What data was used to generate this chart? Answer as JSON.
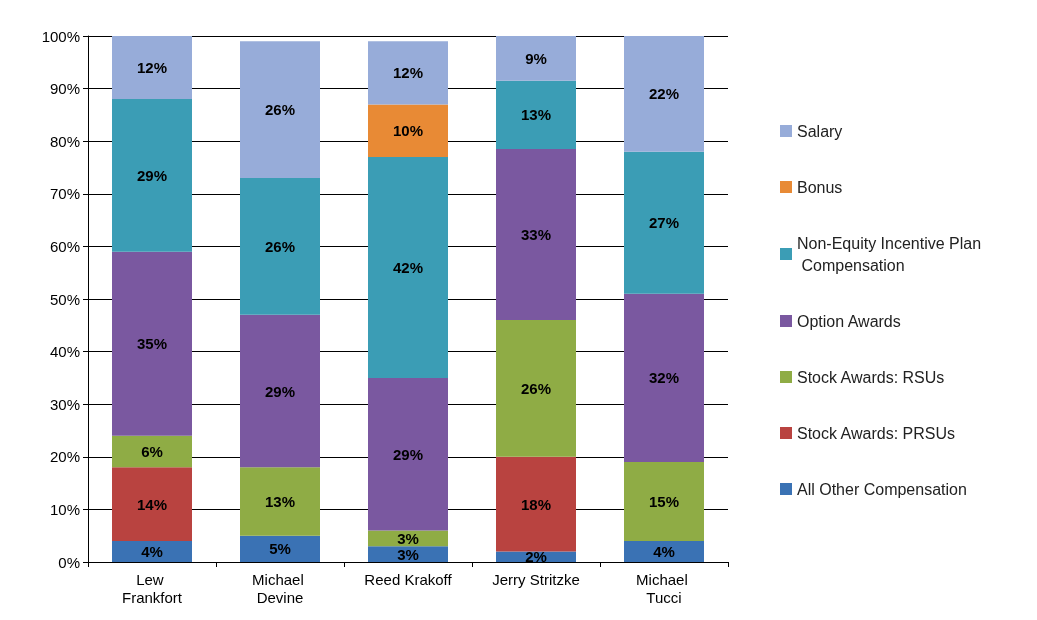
{
  "chart_data": {
    "type": "bar",
    "stacked": true,
    "categories": [
      "Lew Frankfort",
      "Michael Devine",
      "Reed Krakoff",
      "Jerry Stritzke",
      "Michael Tucci"
    ],
    "ylim": [
      0,
      100
    ],
    "yticks": [
      {
        "value": 0,
        "label": "0%"
      },
      {
        "value": 10,
        "label": "10%"
      },
      {
        "value": 20,
        "label": "20%"
      },
      {
        "value": 30,
        "label": "30%"
      },
      {
        "value": 40,
        "label": "40%"
      },
      {
        "value": 50,
        "label": "50%"
      },
      {
        "value": 60,
        "label": "60%"
      },
      {
        "value": 70,
        "label": "70%"
      },
      {
        "value": 80,
        "label": "80%"
      },
      {
        "value": 90,
        "label": "90%"
      },
      {
        "value": 100,
        "label": "100%"
      }
    ],
    "grid": "y",
    "legend": "right",
    "series": [
      {
        "name": "All Other Compensation",
        "color": "#3a72b4",
        "values": [
          4,
          5,
          3,
          2,
          4
        ],
        "value_labels": [
          "4%",
          "5%",
          "3%",
          "2%",
          "4%"
        ]
      },
      {
        "name": "Stock Awards: PRSUs",
        "color": "#b94340",
        "values": [
          14,
          null,
          null,
          18,
          null
        ],
        "value_labels": [
          "14%",
          null,
          null,
          "18%",
          null
        ]
      },
      {
        "name": "Stock Awards: RSUs",
        "color": "#8fac45",
        "values": [
          6,
          13,
          3,
          26,
          15
        ],
        "value_labels": [
          "6%",
          "13%",
          "3%",
          "26%",
          "15%"
        ]
      },
      {
        "name": "Option Awards",
        "color": "#7a58a0",
        "values": [
          35,
          29,
          29,
          32.5,
          32
        ],
        "value_labels": [
          "35%",
          "29%",
          "29%",
          "33%",
          "32%"
        ]
      },
      {
        "name": "Non-Equity Incentive Plan Compensation",
        "color": "#3b9db5",
        "values": [
          29,
          26,
          42,
          13,
          27
        ],
        "value_labels": [
          "29%",
          "26%",
          "42%",
          "13%",
          "27%"
        ]
      },
      {
        "name": "Bonus",
        "color": "#e88a35",
        "values": [
          null,
          null,
          10,
          null,
          null
        ],
        "value_labels": [
          null,
          null,
          "10%",
          null,
          null
        ]
      },
      {
        "name": "Salary",
        "color": "#97acd9",
        "values": [
          12,
          26,
          12,
          8.5,
          22
        ],
        "value_labels": [
          "12%",
          "26%",
          "12%",
          "9%",
          "22%"
        ]
      }
    ]
  }
}
